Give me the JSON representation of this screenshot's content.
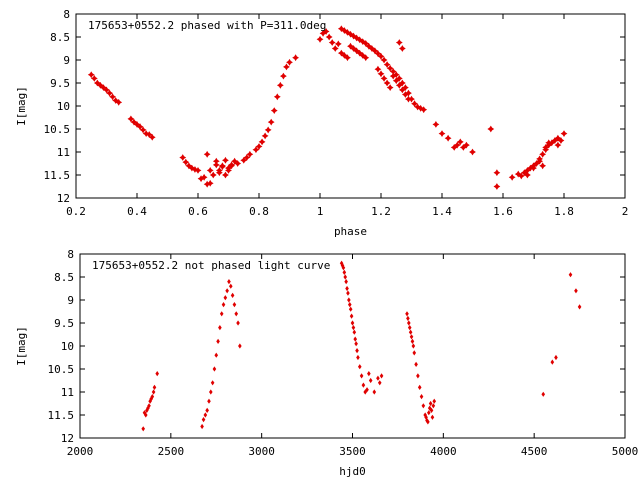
{
  "colors": {
    "points": "#e00000",
    "axes": "#000000",
    "background": "#ffffff"
  },
  "chart_data": [
    {
      "type": "scatter",
      "title": "175653+0552.2 phased with P=311.0deg",
      "xlabel": "phase",
      "ylabel": "I[mag]",
      "xlim": [
        0.2,
        2.0
      ],
      "ylim": [
        12,
        8
      ],
      "y_inverted": true,
      "grid": false,
      "marker": "star",
      "xticks": [
        0.2,
        0.4,
        0.6,
        0.8,
        1.0,
        1.2,
        1.4,
        1.6,
        1.8,
        2.0
      ],
      "xtick_labels": [
        "0.2",
        "0.4",
        "0.6",
        "0.8",
        "1",
        "1.2",
        "1.4",
        "1.6",
        "1.8",
        "2"
      ],
      "yticks": [
        8,
        8.5,
        9,
        9.5,
        10,
        10.5,
        11,
        11.5,
        12
      ],
      "ytick_labels": [
        "8",
        "8.5",
        "9",
        "9.5",
        "10",
        "10.5",
        "11",
        "11.5",
        "12"
      ],
      "series": [
        {
          "x": [
            0.25,
            0.26,
            0.27,
            0.28,
            0.29,
            0.3,
            0.31,
            0.32,
            0.33,
            0.34,
            0.38,
            0.39,
            0.4,
            0.41,
            0.42,
            0.43,
            0.44,
            0.45,
            0.55,
            0.56,
            0.57,
            0.58,
            0.59,
            0.6,
            0.61,
            0.62,
            0.63,
            0.64,
            0.65,
            0.66,
            0.67,
            0.68,
            0.69,
            0.7,
            0.71,
            0.72,
            0.73,
            0.75,
            0.76,
            0.77,
            0.79,
            0.8,
            0.81,
            0.82,
            0.83,
            0.84,
            0.85,
            0.86,
            0.87,
            0.88,
            0.89,
            0.9,
            0.92,
            1.0,
            1.01,
            1.02,
            1.03,
            1.04,
            1.05,
            1.06,
            1.07,
            1.08,
            1.09,
            1.1,
            1.11,
            1.12,
            1.13,
            1.14,
            1.15,
            1.16,
            1.17,
            1.18,
            1.19,
            1.2,
            1.21,
            1.22,
            1.23,
            1.24,
            1.25,
            1.26,
            1.27,
            1.28,
            1.29,
            1.3,
            1.31,
            1.32,
            1.33,
            1.34,
            1.38,
            1.4,
            1.42,
            1.44,
            1.45,
            1.46,
            1.47,
            1.48,
            1.5,
            1.56,
            1.58,
            1.58,
            1.63,
            1.65,
            1.66,
            1.67,
            1.68,
            1.69,
            1.7,
            1.71,
            1.72,
            1.73,
            1.74,
            1.75,
            1.76,
            1.77,
            1.78,
            1.8,
            1.1,
            1.11,
            1.12,
            1.13,
            1.14,
            1.15,
            1.19,
            1.2,
            1.21,
            1.22,
            1.23,
            1.24,
            1.25,
            1.26,
            1.27,
            1.28,
            1.29,
            0.63,
            0.64,
            0.66,
            0.67,
            0.68,
            0.69,
            0.7,
            0.71,
            1.07,
            1.08,
            1.09,
            1.26,
            1.27,
            1.68,
            1.7,
            1.72,
            1.73,
            1.74,
            1.75,
            1.78,
            1.79
          ],
          "y": [
            9.32,
            9.4,
            9.5,
            9.55,
            9.6,
            9.65,
            9.72,
            9.8,
            9.88,
            9.92,
            10.28,
            10.35,
            10.4,
            10.45,
            10.52,
            10.6,
            10.62,
            10.68,
            11.12,
            11.22,
            11.3,
            11.35,
            11.38,
            11.4,
            11.58,
            11.55,
            11.05,
            11.68,
            11.5,
            11.28,
            11.45,
            11.32,
            11.18,
            11.35,
            11.28,
            11.2,
            11.25,
            11.18,
            11.12,
            11.05,
            10.95,
            10.88,
            10.78,
            10.65,
            10.52,
            10.35,
            10.1,
            9.8,
            9.55,
            9.35,
            9.15,
            9.05,
            8.95,
            8.55,
            8.42,
            8.38,
            8.5,
            8.62,
            8.75,
            8.65,
            8.32,
            8.36,
            8.4,
            8.44,
            8.48,
            8.52,
            8.56,
            8.6,
            8.64,
            8.7,
            8.75,
            8.8,
            8.86,
            8.92,
            9.0,
            9.1,
            9.18,
            9.25,
            9.32,
            9.4,
            9.5,
            9.6,
            9.72,
            9.85,
            9.95,
            10.02,
            10.05,
            10.08,
            10.4,
            10.6,
            10.7,
            10.9,
            10.85,
            10.78,
            10.9,
            10.85,
            11.0,
            10.5,
            11.45,
            11.75,
            11.55,
            11.48,
            11.52,
            11.45,
            11.4,
            11.35,
            11.3,
            11.25,
            11.15,
            11.05,
            10.95,
            10.85,
            10.8,
            10.75,
            10.7,
            10.6,
            8.7,
            8.75,
            8.8,
            8.85,
            8.9,
            8.95,
            9.2,
            9.3,
            9.4,
            9.5,
            9.6,
            9.35,
            9.45,
            9.55,
            9.65,
            9.75,
            9.85,
            11.7,
            11.4,
            11.2,
            11.4,
            11.3,
            11.5,
            11.4,
            11.3,
            8.85,
            8.9,
            8.95,
            8.62,
            8.75,
            11.5,
            11.35,
            11.2,
            11.3,
            10.9,
            10.8,
            10.85,
            10.75
          ]
        }
      ]
    },
    {
      "type": "scatter",
      "title": "175653+0552.2 not phased light curve",
      "xlabel": "hjd0",
      "ylabel": "I[mag]",
      "xlim": [
        2000,
        5000
      ],
      "ylim": [
        12,
        8
      ],
      "y_inverted": true,
      "grid": false,
      "marker": "diamond",
      "xticks": [
        2000,
        2500,
        3000,
        3500,
        4000,
        4500,
        5000
      ],
      "xtick_labels": [
        "2000",
        "2500",
        "3000",
        "3500",
        "4000",
        "4500",
        "5000"
      ],
      "yticks": [
        8,
        8.5,
        9,
        9.5,
        10,
        10.5,
        11,
        11.5,
        12
      ],
      "ytick_labels": [
        "8",
        "8.5",
        "9",
        "9.5",
        "10",
        "10.5",
        "11",
        "11.5",
        "12"
      ],
      "series": [
        {
          "x": [
            2348,
            2355,
            2362,
            2368,
            2374,
            2380,
            2386,
            2392,
            2398,
            2405,
            2410,
            2425,
            2672,
            2680,
            2690,
            2700,
            2710,
            2720,
            2730,
            2740,
            2750,
            2760,
            2770,
            2780,
            2790,
            2800,
            2810,
            2820,
            2830,
            2840,
            2850,
            2860,
            2870,
            2880,
            3440,
            3445,
            3450,
            3455,
            3460,
            3465,
            3470,
            3475,
            3480,
            3485,
            3490,
            3495,
            3500,
            3505,
            3510,
            3515,
            3520,
            3525,
            3530,
            3540,
            3550,
            3560,
            3570,
            3580,
            3590,
            3600,
            3620,
            3640,
            3650,
            3660,
            3800,
            3805,
            3810,
            3815,
            3820,
            3825,
            3830,
            3835,
            3840,
            3850,
            3860,
            3870,
            3880,
            3890,
            3900,
            3905,
            3910,
            3915,
            3920,
            3925,
            3930,
            3935,
            3940,
            3945,
            3950,
            4550,
            4600,
            4620,
            4700,
            4730,
            4750
          ],
          "y": [
            11.8,
            11.45,
            11.5,
            11.4,
            11.35,
            11.3,
            11.2,
            11.15,
            11.1,
            11.0,
            10.9,
            10.6,
            11.75,
            11.6,
            11.5,
            11.4,
            11.2,
            11.0,
            10.8,
            10.5,
            10.2,
            9.9,
            9.6,
            9.3,
            9.1,
            8.95,
            8.8,
            8.6,
            8.7,
            8.9,
            9.1,
            9.3,
            9.5,
            10.0,
            8.2,
            8.25,
            8.3,
            8.4,
            8.5,
            8.6,
            8.75,
            8.85,
            9.0,
            9.1,
            9.2,
            9.35,
            9.5,
            9.6,
            9.7,
            9.85,
            9.95,
            10.1,
            10.25,
            10.45,
            10.65,
            10.85,
            11.0,
            10.95,
            10.6,
            10.75,
            11.0,
            10.7,
            10.8,
            10.65,
            9.3,
            9.4,
            9.5,
            9.6,
            9.7,
            9.8,
            9.9,
            10.0,
            10.15,
            10.4,
            10.65,
            10.9,
            11.1,
            11.3,
            11.5,
            11.55,
            11.62,
            11.65,
            11.45,
            11.35,
            11.25,
            11.4,
            11.55,
            11.3,
            11.2,
            11.05,
            10.35,
            10.25,
            8.45,
            8.8,
            9.15
          ]
        }
      ]
    }
  ]
}
